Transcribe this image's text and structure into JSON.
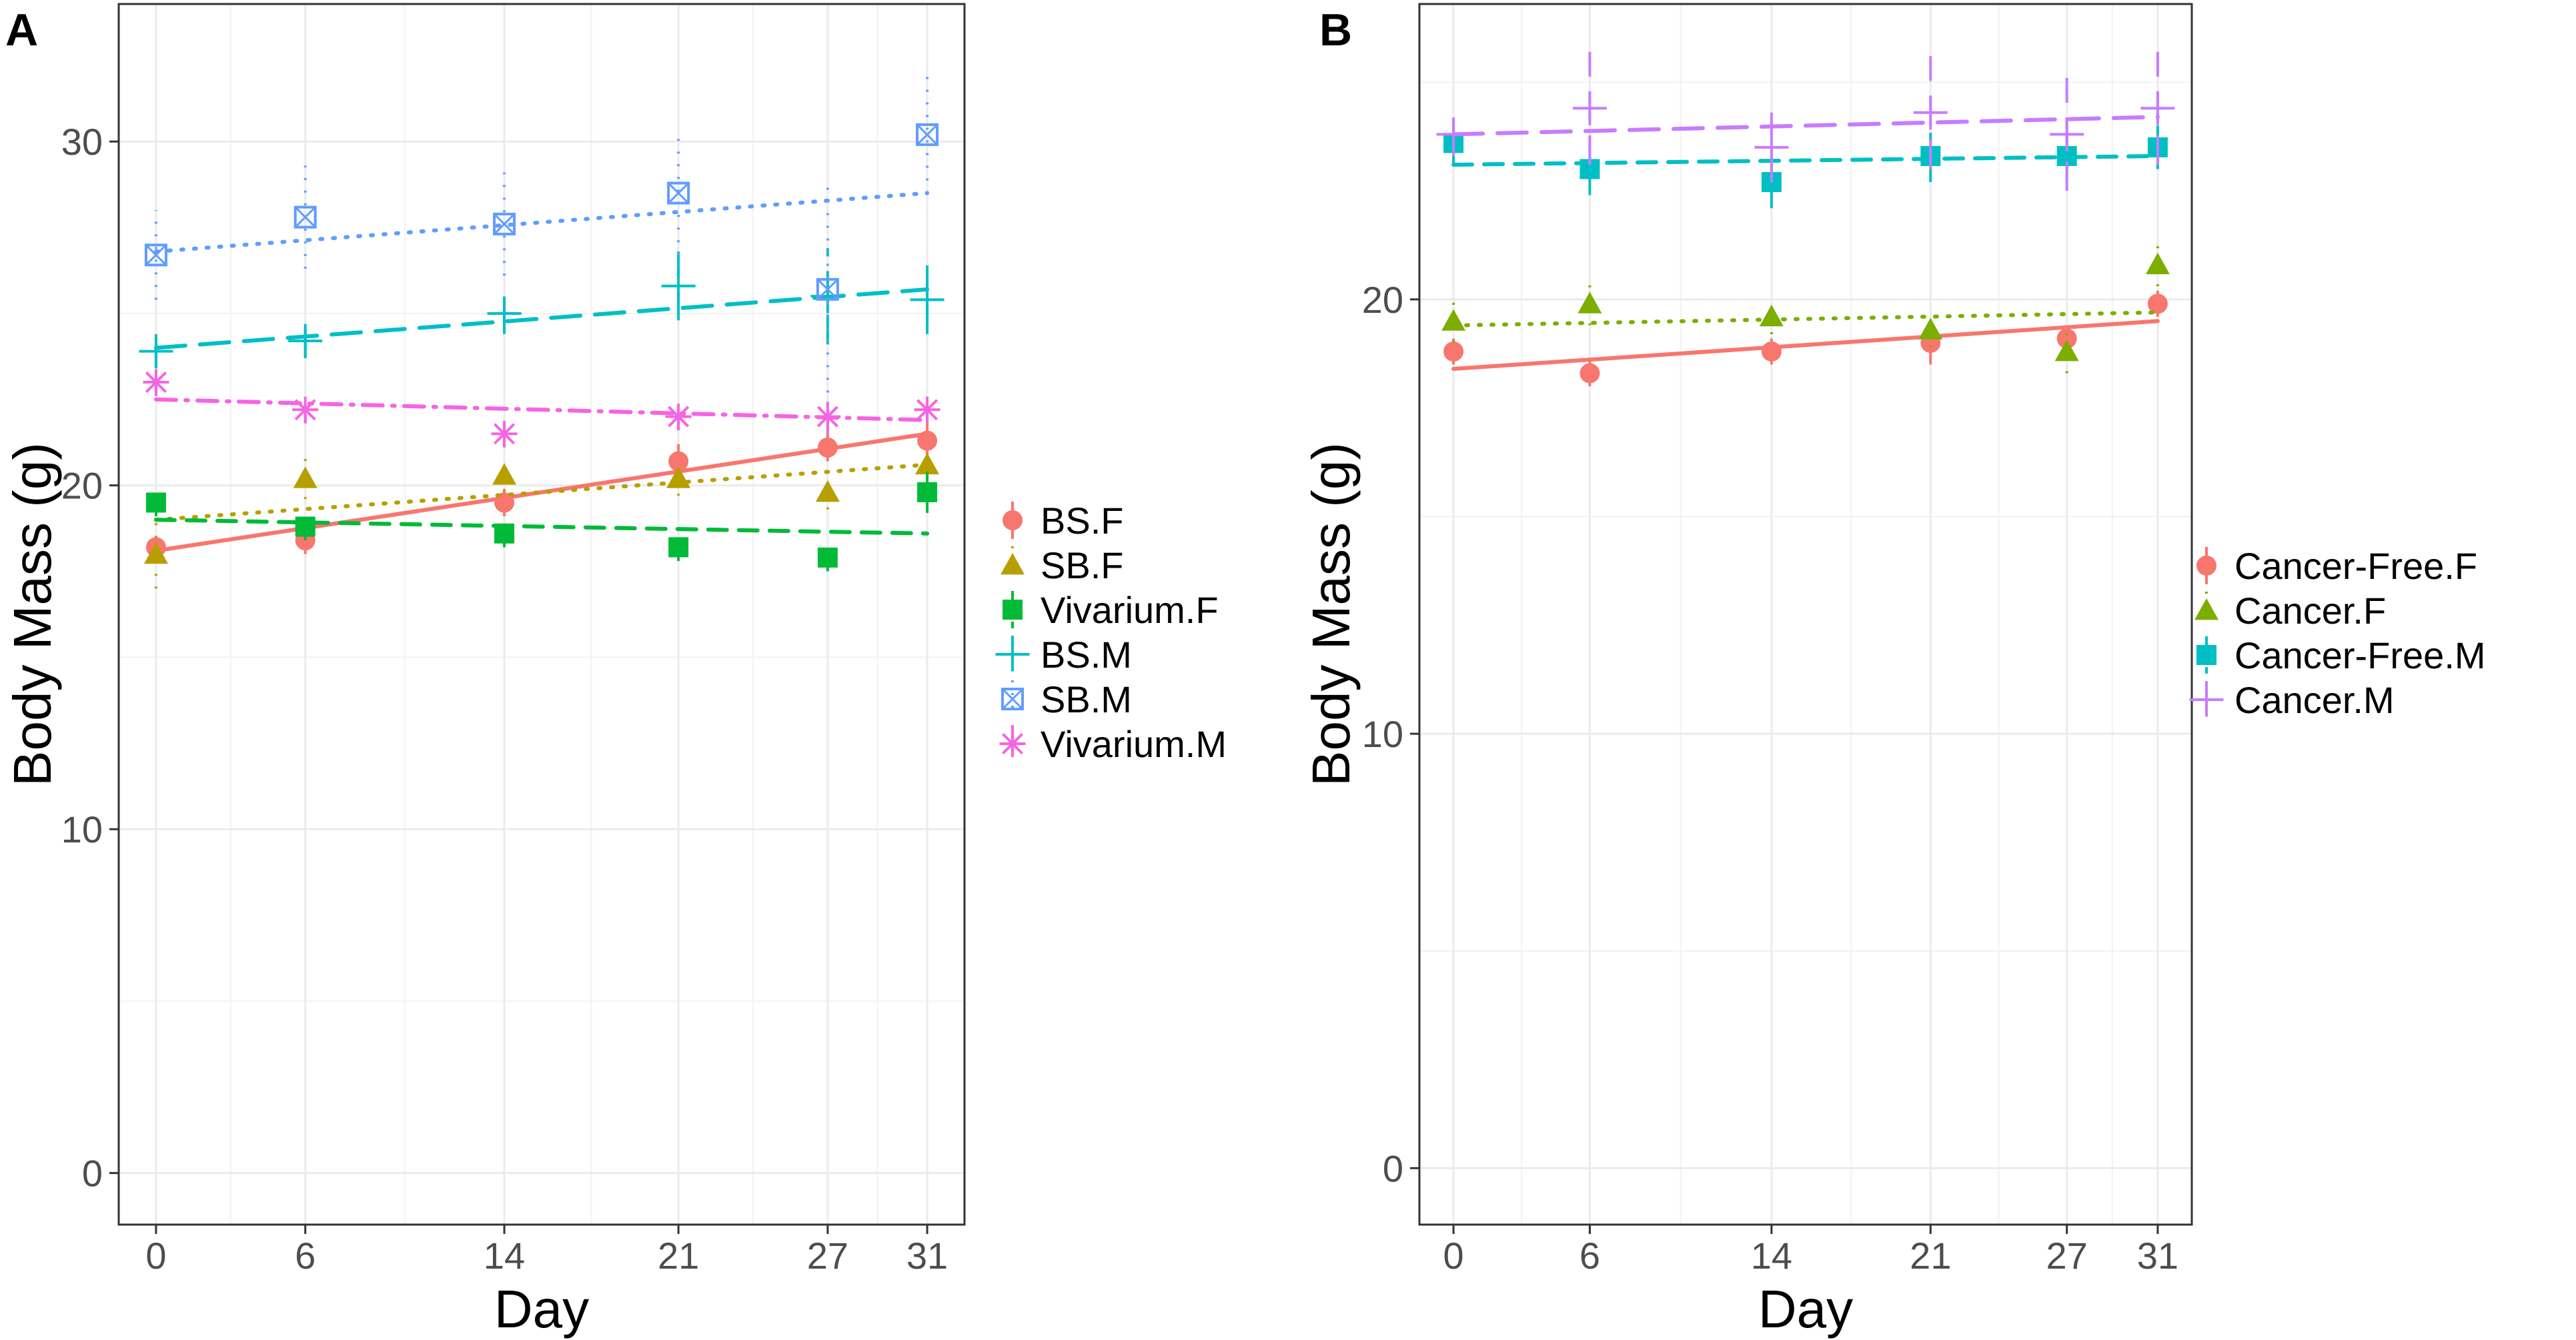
{
  "chart_data": [
    {
      "type": "scatter",
      "panel_label": "A",
      "xlabel": "Day",
      "ylabel": "Body Mass (g)",
      "x_ticks": [
        "0",
        "6",
        "14",
        "21",
        "27",
        "31"
      ],
      "y_ticks": [
        "0",
        "10",
        "20",
        "30"
      ],
      "xlim": [
        -1.5,
        32.5
      ],
      "ylim": [
        -1.5,
        34
      ],
      "grid": true,
      "legend_position": "right",
      "series": [
        {
          "name": "BS.F",
          "color": "#F8766D",
          "marker": "circle",
          "linetype": "solid",
          "x": [
            0,
            6,
            14,
            21,
            27,
            31
          ],
          "y": [
            18.2,
            18.4,
            19.5,
            20.7,
            21.1,
            21.3
          ],
          "err": [
            0.3,
            0.4,
            0.4,
            0.5,
            0.4,
            0.5
          ],
          "fit": [
            18.1,
            21.5
          ]
        },
        {
          "name": "SB.F",
          "color": "#B79F00",
          "marker": "triangle",
          "linetype": "dotted",
          "x": [
            0,
            6,
            14,
            21,
            27,
            31
          ],
          "y": [
            18.0,
            20.2,
            20.3,
            20.2,
            19.8,
            20.6
          ],
          "err": [
            1.0,
            0.6,
            0.5,
            0.5,
            0.5,
            0.5
          ],
          "fit": [
            19.0,
            20.6
          ]
        },
        {
          "name": "Vivarium.F",
          "color": "#00BA38",
          "marker": "square",
          "linetype": "dashed",
          "x": [
            0,
            6,
            14,
            21,
            27,
            31
          ],
          "y": [
            19.5,
            18.8,
            18.6,
            18.2,
            17.9,
            19.8
          ],
          "err": [
            0.4,
            0.4,
            0.4,
            0.4,
            0.4,
            0.6
          ],
          "fit": [
            19.0,
            18.6
          ]
        },
        {
          "name": "BS.M",
          "color": "#00BFC4",
          "marker": "plus",
          "linetype": "longdash",
          "x": [
            0,
            6,
            14,
            21,
            27,
            31
          ],
          "y": [
            23.9,
            24.2,
            25.0,
            25.8,
            25.5,
            25.4
          ],
          "err": [
            0.5,
            0.5,
            0.6,
            1.0,
            1.4,
            1.0
          ],
          "fit": [
            24.0,
            25.7
          ]
        },
        {
          "name": "SB.M",
          "color": "#619CFF",
          "marker": "boxx",
          "linetype": "dotted",
          "x": [
            0,
            6,
            14,
            21,
            27,
            31
          ],
          "y": [
            26.7,
            27.8,
            27.6,
            28.5,
            25.7,
            30.2
          ],
          "err": [
            1.3,
            1.5,
            1.5,
            1.8,
            3.0,
            1.7
          ],
          "fit": [
            26.8,
            28.5
          ]
        },
        {
          "name": "Vivarium.M",
          "color": "#F564E3",
          "marker": "asterisk",
          "linetype": "dotdash",
          "x": [
            0,
            6,
            14,
            21,
            27,
            31
          ],
          "y": [
            23.0,
            22.2,
            21.5,
            22.0,
            22.0,
            22.2
          ],
          "err": [
            0.4,
            0.4,
            0.4,
            0.4,
            0.5,
            0.4
          ],
          "fit": [
            22.5,
            21.9
          ]
        }
      ]
    },
    {
      "type": "scatter",
      "panel_label": "B",
      "xlabel": "Day",
      "ylabel": "Body Mass (g)",
      "x_ticks": [
        "0",
        "6",
        "14",
        "21",
        "27",
        "31"
      ],
      "y_ticks": [
        "0",
        "10",
        "20"
      ],
      "xlim": [
        -1.5,
        32.5
      ],
      "ylim": [
        -1.3,
        26.8
      ],
      "grid": true,
      "legend_position": "right",
      "series": [
        {
          "name": "Cancer-Free.F",
          "color": "#F8766D",
          "marker": "circle",
          "linetype": "solid",
          "x": [
            0,
            6,
            14,
            21,
            27,
            31
          ],
          "y": [
            18.8,
            18.3,
            18.8,
            19.0,
            19.1,
            19.9
          ],
          "err": [
            0.3,
            0.3,
            0.3,
            0.5,
            0.3,
            0.3
          ],
          "fit": [
            18.4,
            19.5
          ]
        },
        {
          "name": "Cancer.F",
          "color": "#7CAE00",
          "marker": "triangle",
          "linetype": "dotted",
          "x": [
            0,
            6,
            14,
            21,
            27,
            31
          ],
          "y": [
            19.5,
            19.9,
            19.6,
            19.3,
            18.8,
            20.8
          ],
          "err": [
            0.5,
            0.5,
            0.4,
            0.4,
            0.5,
            0.5
          ],
          "fit": [
            19.4,
            19.7
          ]
        },
        {
          "name": "Cancer-Free.M",
          "color": "#00BFC4",
          "marker": "square",
          "linetype": "dashed",
          "x": [
            0,
            6,
            14,
            21,
            27,
            31
          ],
          "y": [
            23.6,
            23.0,
            22.7,
            23.3,
            23.3,
            23.5
          ],
          "err": [
            0.5,
            0.6,
            0.6,
            0.6,
            0.5,
            0.5
          ],
          "fit": [
            23.1,
            23.3
          ]
        },
        {
          "name": "Cancer.M",
          "color": "#C77CFF",
          "marker": "plus",
          "linetype": "longdash",
          "x": [
            0,
            6,
            14,
            21,
            27,
            31
          ],
          "y": [
            23.8,
            24.4,
            23.5,
            24.3,
            23.8,
            24.4
          ],
          "err": [
            0.5,
            1.3,
            0.8,
            1.3,
            1.3,
            1.3
          ],
          "fit": [
            23.8,
            24.2
          ]
        }
      ]
    }
  ]
}
